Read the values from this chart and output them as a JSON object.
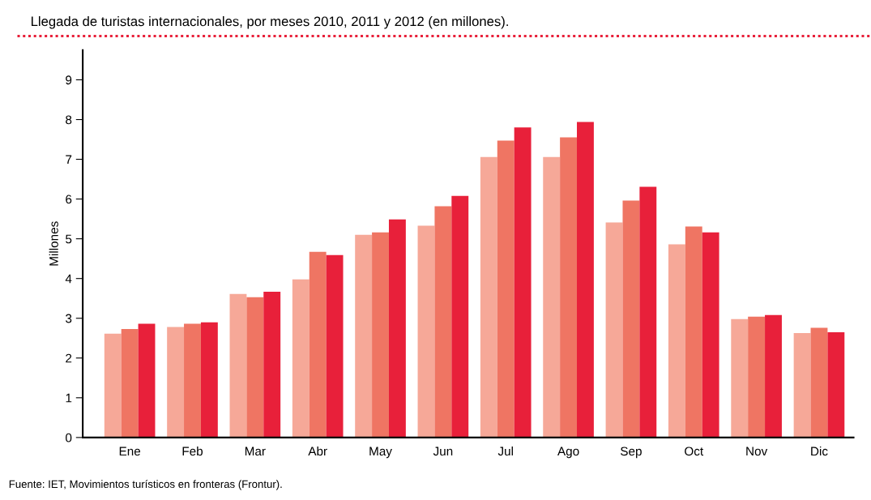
{
  "chart_data": {
    "type": "bar",
    "title": "Llegada de turistas internacionales, por meses 2010, 2011 y 2012 (en millones).",
    "ylabel": "Millones",
    "categories": [
      "Ene",
      "Feb",
      "Mar",
      "Abr",
      "May",
      "Jun",
      "Jul",
      "Ago",
      "Sep",
      "Oct",
      "Nov",
      "Dic"
    ],
    "series": [
      {
        "color": "#f6a898",
        "values": [
          2.61,
          2.78,
          3.61,
          3.98,
          5.1,
          5.33,
          7.06,
          7.06,
          5.41,
          4.86,
          2.98,
          2.63
        ]
      },
      {
        "color": "#ef7563",
        "values": [
          2.73,
          2.86,
          3.53,
          4.67,
          5.16,
          5.82,
          7.47,
          7.55,
          5.96,
          5.31,
          3.04,
          2.76
        ]
      },
      {
        "color": "#e8203a",
        "values": [
          2.86,
          2.9,
          3.67,
          4.59,
          5.49,
          6.08,
          7.8,
          7.94,
          6.31,
          5.16,
          3.08,
          2.65
        ]
      }
    ],
    "ylim": [
      0,
      9.75
    ],
    "yticks": [
      0,
      1,
      2,
      3,
      4,
      5,
      6,
      7,
      8,
      9
    ],
    "grid": false,
    "legend": false,
    "annotations": [
      "Fuente: IET, Movimientos turísticos en fronteras (Frontur)."
    ]
  }
}
